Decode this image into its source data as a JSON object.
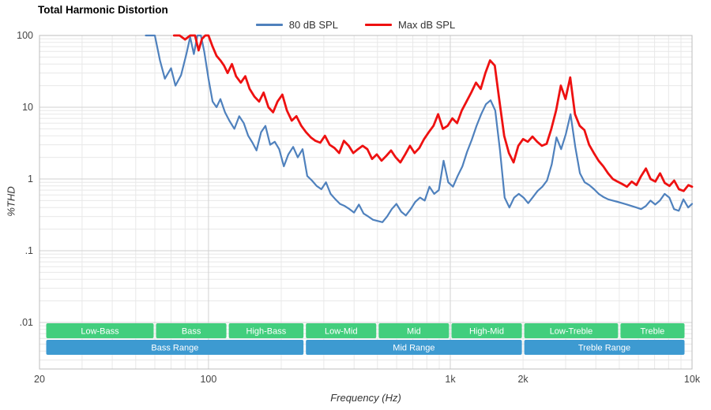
{
  "style": {
    "grid_minor": "#e8e8e8",
    "grid_major": "#d2d2d2",
    "plot_border": "#bdbdbd",
    "tick_color": "#444444",
    "band_text_color": "#ffffff",
    "band_green": "#42ce7d",
    "band_blue": "#3d9ad1"
  },
  "chart_data": {
    "type": "line",
    "title": "Total Harmonic Distortion",
    "xlabel": "Frequency (Hz)",
    "ylabel": "%THD",
    "x_scale": "log",
    "y_scale": "log",
    "xlim": [
      20,
      10000
    ],
    "ylim": [
      0.01,
      100
    ],
    "grid": true,
    "legend_position": "top-center",
    "x_ticks": [
      {
        "v": 20,
        "label": "20"
      },
      {
        "v": 100,
        "label": "100"
      },
      {
        "v": 1000,
        "label": "1k"
      },
      {
        "v": 2000,
        "label": "2k"
      },
      {
        "v": 10000,
        "label": "10k"
      }
    ],
    "y_ticks": [
      {
        "v": 100,
        "label": "100"
      },
      {
        "v": 10,
        "label": "10"
      },
      {
        "v": 1,
        "label": "1"
      },
      {
        "v": 0.1,
        "label": ".1"
      },
      {
        "v": 0.01,
        "label": ".01"
      }
    ],
    "series": [
      {
        "name": "80 dB SPL",
        "color": "#4f81bd",
        "points": [
          [
            55,
            100
          ],
          [
            60,
            100
          ],
          [
            63,
            45
          ],
          [
            66,
            25
          ],
          [
            70,
            35
          ],
          [
            73,
            20
          ],
          [
            77,
            28
          ],
          [
            81,
            55
          ],
          [
            84,
            95
          ],
          [
            87,
            55
          ],
          [
            90,
            100
          ],
          [
            93,
            100
          ],
          [
            96,
            60
          ],
          [
            100,
            25
          ],
          [
            104,
            12
          ],
          [
            108,
            10
          ],
          [
            112,
            13
          ],
          [
            117,
            8.5
          ],
          [
            122,
            6.5
          ],
          [
            128,
            5
          ],
          [
            134,
            7.5
          ],
          [
            140,
            6
          ],
          [
            146,
            4
          ],
          [
            152,
            3.2
          ],
          [
            158,
            2.5
          ],
          [
            165,
            4.5
          ],
          [
            172,
            5.5
          ],
          [
            180,
            3
          ],
          [
            188,
            3.3
          ],
          [
            196,
            2.6
          ],
          [
            205,
            1.5
          ],
          [
            214,
            2.2
          ],
          [
            224,
            2.8
          ],
          [
            234,
            2
          ],
          [
            245,
            2.6
          ],
          [
            256,
            1.1
          ],
          [
            268,
            0.95
          ],
          [
            280,
            0.8
          ],
          [
            293,
            0.72
          ],
          [
            306,
            0.9
          ],
          [
            320,
            0.62
          ],
          [
            335,
            0.52
          ],
          [
            350,
            0.45
          ],
          [
            366,
            0.42
          ],
          [
            383,
            0.38
          ],
          [
            400,
            0.34
          ],
          [
            419,
            0.44
          ],
          [
            438,
            0.33
          ],
          [
            458,
            0.3
          ],
          [
            479,
            0.27
          ],
          [
            500,
            0.26
          ],
          [
            524,
            0.25
          ],
          [
            548,
            0.3
          ],
          [
            573,
            0.38
          ],
          [
            599,
            0.45
          ],
          [
            627,
            0.35
          ],
          [
            655,
            0.31
          ],
          [
            686,
            0.38
          ],
          [
            717,
            0.48
          ],
          [
            750,
            0.55
          ],
          [
            784,
            0.5
          ],
          [
            820,
            0.78
          ],
          [
            858,
            0.62
          ],
          [
            897,
            0.7
          ],
          [
            938,
            1.8
          ],
          [
            981,
            0.9
          ],
          [
            1026,
            0.78
          ],
          [
            1073,
            1.1
          ],
          [
            1122,
            1.5
          ],
          [
            1174,
            2.4
          ],
          [
            1227,
            3.5
          ],
          [
            1284,
            5.5
          ],
          [
            1342,
            8
          ],
          [
            1404,
            11
          ],
          [
            1468,
            12.5
          ],
          [
            1535,
            9
          ],
          [
            1606,
            2.5
          ],
          [
            1679,
            0.55
          ],
          [
            1756,
            0.4
          ],
          [
            1837,
            0.55
          ],
          [
            1921,
            0.62
          ],
          [
            2009,
            0.55
          ],
          [
            2101,
            0.46
          ],
          [
            2197,
            0.56
          ],
          [
            2298,
            0.68
          ],
          [
            2403,
            0.78
          ],
          [
            2513,
            0.95
          ],
          [
            2628,
            1.6
          ],
          [
            2749,
            3.8
          ],
          [
            2875,
            2.6
          ],
          [
            3006,
            4.2
          ],
          [
            3144,
            8
          ],
          [
            3288,
            2.8
          ],
          [
            3439,
            1.2
          ],
          [
            3596,
            0.9
          ],
          [
            3761,
            0.82
          ],
          [
            3933,
            0.72
          ],
          [
            4113,
            0.62
          ],
          [
            4302,
            0.56
          ],
          [
            4499,
            0.52
          ],
          [
            4705,
            0.5
          ],
          [
            4921,
            0.48
          ],
          [
            5146,
            0.46
          ],
          [
            5382,
            0.44
          ],
          [
            5629,
            0.42
          ],
          [
            5887,
            0.4
          ],
          [
            6156,
            0.38
          ],
          [
            6438,
            0.42
          ],
          [
            6733,
            0.5
          ],
          [
            7042,
            0.44
          ],
          [
            7364,
            0.5
          ],
          [
            7702,
            0.62
          ],
          [
            8055,
            0.55
          ],
          [
            8424,
            0.38
          ],
          [
            8810,
            0.36
          ],
          [
            9213,
            0.52
          ],
          [
            9635,
            0.4
          ],
          [
            10000,
            0.45
          ]
        ]
      },
      {
        "name": "Max dB SPL",
        "color": "#ee1111",
        "points": [
          [
            72,
            100
          ],
          [
            76,
            100
          ],
          [
            80,
            88
          ],
          [
            84,
            100
          ],
          [
            88,
            100
          ],
          [
            91,
            62
          ],
          [
            94,
            90
          ],
          [
            97,
            100
          ],
          [
            100,
            100
          ],
          [
            104,
            70
          ],
          [
            108,
            52
          ],
          [
            112,
            45
          ],
          [
            116,
            38
          ],
          [
            120,
            30
          ],
          [
            125,
            40
          ],
          [
            130,
            27
          ],
          [
            136,
            22
          ],
          [
            142,
            27
          ],
          [
            148,
            18
          ],
          [
            155,
            14
          ],
          [
            162,
            12
          ],
          [
            169,
            16
          ],
          [
            177,
            10
          ],
          [
            185,
            8.5
          ],
          [
            193,
            12
          ],
          [
            202,
            15
          ],
          [
            211,
            9
          ],
          [
            221,
            6.5
          ],
          [
            231,
            7.5
          ],
          [
            242,
            5.5
          ],
          [
            253,
            4.5
          ],
          [
            265,
            3.8
          ],
          [
            277,
            3.4
          ],
          [
            290,
            3.2
          ],
          [
            303,
            4
          ],
          [
            317,
            3
          ],
          [
            332,
            2.7
          ],
          [
            347,
            2.3
          ],
          [
            363,
            3.4
          ],
          [
            380,
            2.9
          ],
          [
            397,
            2.3
          ],
          [
            415,
            2.6
          ],
          [
            434,
            2.9
          ],
          [
            454,
            2.6
          ],
          [
            475,
            1.9
          ],
          [
            497,
            2.2
          ],
          [
            520,
            1.8
          ],
          [
            544,
            2.1
          ],
          [
            569,
            2.5
          ],
          [
            595,
            2
          ],
          [
            622,
            1.7
          ],
          [
            651,
            2.2
          ],
          [
            681,
            2.9
          ],
          [
            712,
            2.3
          ],
          [
            745,
            2.7
          ],
          [
            779,
            3.6
          ],
          [
            815,
            4.5
          ],
          [
            852,
            5.5
          ],
          [
            891,
            8
          ],
          [
            932,
            5
          ],
          [
            975,
            5.5
          ],
          [
            1020,
            7
          ],
          [
            1067,
            6
          ],
          [
            1116,
            9
          ],
          [
            1167,
            12
          ],
          [
            1221,
            16
          ],
          [
            1277,
            22
          ],
          [
            1336,
            18
          ],
          [
            1397,
            30
          ],
          [
            1461,
            45
          ],
          [
            1528,
            38
          ],
          [
            1598,
            12
          ],
          [
            1671,
            4
          ],
          [
            1748,
            2.3
          ],
          [
            1828,
            1.7
          ],
          [
            1912,
            2.9
          ],
          [
            2000,
            3.6
          ],
          [
            2092,
            3.3
          ],
          [
            2188,
            3.9
          ],
          [
            2289,
            3.3
          ],
          [
            2394,
            2.9
          ],
          [
            2504,
            3.1
          ],
          [
            2619,
            5
          ],
          [
            2739,
            9
          ],
          [
            2865,
            20
          ],
          [
            2997,
            13
          ],
          [
            3135,
            26
          ],
          [
            3279,
            8
          ],
          [
            3430,
            5.5
          ],
          [
            3588,
            4.8
          ],
          [
            3753,
            3
          ],
          [
            3926,
            2.3
          ],
          [
            4107,
            1.8
          ],
          [
            4296,
            1.5
          ],
          [
            4494,
            1.2
          ],
          [
            4701,
            1
          ],
          [
            4917,
            0.92
          ],
          [
            5143,
            0.85
          ],
          [
            5380,
            0.78
          ],
          [
            5628,
            0.92
          ],
          [
            5887,
            0.82
          ],
          [
            6158,
            1.1
          ],
          [
            6442,
            1.4
          ],
          [
            6738,
            1
          ],
          [
            7048,
            0.92
          ],
          [
            7373,
            1.2
          ],
          [
            7712,
            0.88
          ],
          [
            8067,
            0.8
          ],
          [
            8438,
            0.95
          ],
          [
            8827,
            0.72
          ],
          [
            9233,
            0.68
          ],
          [
            9658,
            0.82
          ],
          [
            10000,
            0.78
          ]
        ]
      }
    ],
    "bands": {
      "sub_bands": [
        {
          "label": "Low-Bass",
          "from": 20,
          "to": 60
        },
        {
          "label": "Bass",
          "from": 60,
          "to": 120
        },
        {
          "label": "High-Bass",
          "from": 120,
          "to": 250
        },
        {
          "label": "Low-Mid",
          "from": 250,
          "to": 500
        },
        {
          "label": "Mid",
          "from": 500,
          "to": 1000
        },
        {
          "label": "High-Mid",
          "from": 1000,
          "to": 2000
        },
        {
          "label": "Low-Treble",
          "from": 2000,
          "to": 5000
        },
        {
          "label": "Treble",
          "from": 5000,
          "to": 10000
        }
      ],
      "ranges": [
        {
          "label": "Bass Range",
          "from": 20,
          "to": 250
        },
        {
          "label": "Mid Range",
          "from": 250,
          "to": 2000
        },
        {
          "label": "Treble Range",
          "from": 2000,
          "to": 10000
        }
      ]
    }
  }
}
